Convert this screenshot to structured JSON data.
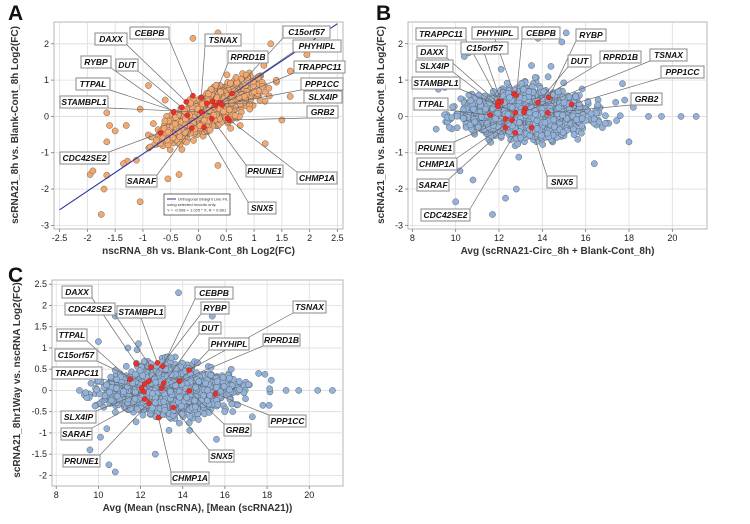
{
  "figure": {
    "panels": [
      "A",
      "B",
      "C"
    ]
  },
  "chart_data": [
    {
      "panel": "A",
      "type": "scatter",
      "xlabel": "nscRNA_8h vs. Blank-Cont_8h Log2(FC)",
      "ylabel": "scRNA21_8h vs. Blank-Cont_8h Log2(FC)",
      "xlim": [
        -2.6,
        2.6
      ],
      "ylim": [
        -3.1,
        2.6
      ],
      "xticks": [
        -2.5,
        -2,
        -1.5,
        -1,
        -0.5,
        0,
        0.5,
        1,
        1.5,
        2,
        2.5
      ],
      "xtick_labels": [
        "-2.5",
        "-2",
        "-1.5",
        "-1",
        "-0.5",
        "0",
        "0.5",
        "1",
        "1.5",
        "2",
        "2.5"
      ],
      "yticks": [
        -3,
        -2,
        -1,
        0,
        1,
        2
      ],
      "ytick_labels": [
        "-3",
        "-2",
        "-1",
        "0",
        "1",
        "2"
      ],
      "grid": true,
      "point_color": "#f4a86e",
      "highlight_color": "#e8312a",
      "fit_line": {
        "intercept": -0.008,
        "slope": 1.025,
        "color": "#2b33a6"
      },
      "legend": {
        "placement": "bottom-center",
        "lines": [
          "Orthogonal Straight Line Fit,",
          "using selected records only.",
          "Y = -0.008 + 1.025 * X, R = 0.891"
        ]
      },
      "cloud": {
        "n": 1500,
        "center": [
          0.15,
          0.1
        ],
        "spread_x": 0.38,
        "spread_y": 0.36,
        "corr": 0.78
      },
      "outliers": [
        [
          -1.95,
          -1.6
        ],
        [
          -1.65,
          -1.62
        ],
        [
          -1.7,
          -2.0
        ],
        [
          -1.75,
          -2.7
        ],
        [
          -1.05,
          -2.35
        ],
        [
          -0.1,
          2.15
        ],
        [
          0.35,
          2.3
        ],
        [
          1.3,
          2.0
        ],
        [
          1.95,
          1.7
        ],
        [
          1.65,
          0.55
        ],
        [
          -1.65,
          0.1
        ],
        [
          -1.6,
          -0.25
        ],
        [
          -1.5,
          -0.4
        ],
        [
          -1.65,
          -0.7
        ],
        [
          -1.3,
          -0.25
        ],
        [
          -0.9,
          0.85
        ],
        [
          0.35,
          -1.35
        ],
        [
          -0.35,
          -1.6
        ],
        [
          1.5,
          -0.1
        ],
        [
          1.2,
          -0.75
        ],
        [
          0.75,
          -0.25
        ],
        [
          -1.9,
          -1.5
        ],
        [
          -1.35,
          -1.3
        ],
        [
          -0.55,
          -1.72
        ],
        [
          1.4,
          1.0
        ],
        [
          1.65,
          1.25
        ],
        [
          -1.05,
          0.2
        ],
        [
          -0.6,
          0.45
        ]
      ],
      "highlights": [
        {
          "gene": "CEBPB",
          "x": -0.1,
          "y": 0.57
        },
        {
          "gene": "TSNAX",
          "x": 0.05,
          "y": 0.52
        },
        {
          "gene": "RPRD1B",
          "x": 0.25,
          "y": 0.42
        },
        {
          "gene": "C15orf57",
          "x": 0.6,
          "y": 0.63
        },
        {
          "gene": "PHYHIPL",
          "x": 0.38,
          "y": 0.38
        },
        {
          "gene": "TRAPPC11",
          "x": 0.3,
          "y": 0.3
        },
        {
          "gene": "PPP1CC",
          "x": 0.42,
          "y": 0.32
        },
        {
          "gene": "SLX4IP",
          "x": 0.15,
          "y": 0.36
        },
        {
          "gene": "GRB2",
          "x": 0.55,
          "y": -0.1
        },
        {
          "gene": "DAXX",
          "x": -0.22,
          "y": 0.4
        },
        {
          "gene": "DUT",
          "x": -0.3,
          "y": 0.25
        },
        {
          "gene": "RYBP",
          "x": -0.45,
          "y": 0.12
        },
        {
          "gene": "TTPAL",
          "x": -0.2,
          "y": 0.03
        },
        {
          "gene": "STAMBPL1",
          "x": 0.05,
          "y": 0.12
        },
        {
          "gene": "CDC42SE2",
          "x": -0.68,
          "y": -0.45
        },
        {
          "gene": "SARAF",
          "x": -0.12,
          "y": -0.32
        },
        {
          "gene": "PRUNE1",
          "x": 0.24,
          "y": -0.06
        },
        {
          "gene": "SNX5",
          "x": 0.1,
          "y": -0.3
        },
        {
          "gene": "CHMP1A",
          "x": 0.52,
          "y": -0.05
        }
      ]
    },
    {
      "panel": "B",
      "type": "scatter",
      "xlabel": "Avg (scRNA21-Circ_8h + Blank-Cont_8h)",
      "ylabel": "scRNA21_8h vs. Blank-Cont_8h Log2(FC)",
      "xlim": [
        7.8,
        21.6
      ],
      "ylim": [
        -3.1,
        2.6
      ],
      "xticks": [
        8,
        10,
        12,
        14,
        16,
        18,
        20
      ],
      "xtick_labels": [
        "8",
        "10",
        "12",
        "14",
        "16",
        "18",
        "20"
      ],
      "yticks": [
        -3,
        -2,
        -1,
        0,
        1,
        2
      ],
      "ytick_labels": [
        "-3",
        "-2",
        "-1",
        "0",
        "1",
        "2"
      ],
      "grid": true,
      "point_color": "#91b2da",
      "highlight_color": "#e8312a",
      "cloud": {
        "n": 1700,
        "center": [
          13.2,
          0.05
        ],
        "spread_x": 1.35,
        "spread_y": 0.35,
        "corr": 0
      },
      "outliers": [
        [
          18.9,
          0
        ],
        [
          19.5,
          0
        ],
        [
          20.4,
          0
        ],
        [
          21.1,
          0
        ],
        [
          15.1,
          2.3
        ],
        [
          13.8,
          2.15
        ],
        [
          14.9,
          2.05
        ],
        [
          11.7,
          -2.7
        ],
        [
          12.3,
          -2.25
        ],
        [
          12.8,
          -2.0
        ],
        [
          10.0,
          -2.35
        ],
        [
          10.4,
          1.65
        ],
        [
          10.6,
          1.75
        ],
        [
          9.2,
          0.75
        ],
        [
          9.5,
          0.8
        ],
        [
          9.1,
          -0.35
        ],
        [
          18.0,
          -0.7
        ],
        [
          17.7,
          0.9
        ],
        [
          16.4,
          -1.3
        ],
        [
          18.2,
          0.25
        ],
        [
          17.8,
          0.45
        ],
        [
          10.2,
          -1.5
        ],
        [
          10.8,
          -1.75
        ],
        [
          9.7,
          -0.3
        ],
        [
          12.1,
          1.3
        ],
        [
          13.5,
          1.4
        ]
      ],
      "highlights": [
        {
          "gene": "TRAPPC11",
          "x": 12.0,
          "y": 0.42
        },
        {
          "gene": "PHYHIPL",
          "x": 12.7,
          "y": 0.62
        },
        {
          "gene": "CEBPB",
          "x": 12.8,
          "y": 0.58
        },
        {
          "gene": "RYBP",
          "x": 14.3,
          "y": 0.52
        },
        {
          "gene": "DUT",
          "x": 13.8,
          "y": 0.38
        },
        {
          "gene": "RPRD1B",
          "x": 13.2,
          "y": 0.22
        },
        {
          "gene": "TSNAX",
          "x": 13.15,
          "y": 0.12
        },
        {
          "gene": "PPP1CC",
          "x": 15.35,
          "y": 0.33
        },
        {
          "gene": "GRB2",
          "x": 14.25,
          "y": 0.1
        },
        {
          "gene": "C15orf57",
          "x": 12.1,
          "y": 0.4
        },
        {
          "gene": "DAXX",
          "x": 11.95,
          "y": 0.38
        },
        {
          "gene": "SLX4IP",
          "x": 11.95,
          "y": 0.28
        },
        {
          "gene": "STAMBPL1",
          "x": 12.75,
          "y": 0.1
        },
        {
          "gene": "TTPAL",
          "x": 11.6,
          "y": 0.04
        },
        {
          "gene": "PRUNE1",
          "x": 12.3,
          "y": -0.07
        },
        {
          "gene": "CHMP1A",
          "x": 12.6,
          "y": -0.1
        },
        {
          "gene": "SARAF",
          "x": 12.3,
          "y": -0.31
        },
        {
          "gene": "CDC42SE2",
          "x": 12.75,
          "y": -0.45
        },
        {
          "gene": "SNX5",
          "x": 13.5,
          "y": -0.31
        }
      ]
    },
    {
      "panel": "C",
      "type": "scatter",
      "xlabel": "Avg (Mean (nscRNA), [Mean (scRNA21))",
      "ylabel": "scRNA21_8hr1Way vs. nscRNA Log2(FC)",
      "xlim": [
        7.8,
        21.6
      ],
      "ylim": [
        -2.25,
        2.6
      ],
      "xticks": [
        8,
        10,
        12,
        14,
        16,
        18,
        20
      ],
      "xtick_labels": [
        "8",
        "10",
        "12",
        "14",
        "16",
        "18",
        "20"
      ],
      "yticks": [
        -2,
        -1.5,
        -1,
        -0.5,
        0,
        0.5,
        1,
        1.5,
        2,
        2.5
      ],
      "ytick_labels": [
        "-2",
        "-1.5",
        "-1",
        "-0.5",
        "0",
        "0.5",
        "1",
        "1.5",
        "2",
        "2.5"
      ],
      "grid": true,
      "point_color": "#91b2da",
      "highlight_color": "#e8312a",
      "cloud": {
        "n": 1700,
        "center": [
          13.3,
          0.0
        ],
        "spread_x": 1.35,
        "spread_y": 0.3,
        "corr": 0
      },
      "outliers": [
        [
          18.9,
          0
        ],
        [
          19.5,
          0
        ],
        [
          20.4,
          0
        ],
        [
          21.1,
          0
        ],
        [
          13.8,
          2.3
        ],
        [
          15.4,
          1.75
        ],
        [
          10.8,
          1.75
        ],
        [
          11.9,
          1.1
        ],
        [
          10.0,
          1.15
        ],
        [
          9.6,
          -1.4
        ],
        [
          10.5,
          -1.75
        ],
        [
          10.8,
          -1.92
        ],
        [
          12.7,
          -1.5
        ],
        [
          9.1,
          0
        ],
        [
          9.4,
          -0.05
        ],
        [
          17.6,
          0.4
        ],
        [
          17.9,
          0.38
        ],
        [
          18.2,
          0.24
        ],
        [
          17.8,
          -0.35
        ],
        [
          18.1,
          -0.35
        ],
        [
          17.3,
          -0.62
        ],
        [
          15.6,
          -1.15
        ],
        [
          10.4,
          -0.9
        ],
        [
          10.1,
          -1.1
        ],
        [
          11.4,
          1.0
        ],
        [
          16.3,
          0.5
        ]
      ],
      "highlights": [
        {
          "gene": "DAXX",
          "x": 11.8,
          "y": 0.63
        },
        {
          "gene": "CDC42SE2",
          "x": 12.5,
          "y": 0.55
        },
        {
          "gene": "STAMBPL1",
          "x": 12.8,
          "y": 0.65
        },
        {
          "gene": "CEBPB",
          "x": 13.05,
          "y": 0.57
        },
        {
          "gene": "RYBP",
          "x": 12.4,
          "y": 0.22
        },
        {
          "gene": "DUT",
          "x": 13.1,
          "y": 0.17
        },
        {
          "gene": "PHYHIPL",
          "x": 13.85,
          "y": 0.22
        },
        {
          "gene": "TSNAX",
          "x": 14.3,
          "y": 0.48
        },
        {
          "gene": "RPRD1B",
          "x": 13.0,
          "y": 0.05
        },
        {
          "gene": "TTPAL",
          "x": 11.5,
          "y": 0.26
        },
        {
          "gene": "C15orf57",
          "x": 12.2,
          "y": 0.15
        },
        {
          "gene": "TRAPPC11",
          "x": 12.05,
          "y": 0.05
        },
        {
          "gene": "SLX4IP",
          "x": 12.15,
          "y": -0.03
        },
        {
          "gene": "SARAF",
          "x": 12.2,
          "y": -0.2
        },
        {
          "gene": "PRUNE1",
          "x": 12.4,
          "y": -0.3
        },
        {
          "gene": "PPP1CC",
          "x": 15.55,
          "y": -0.08
        },
        {
          "gene": "GRB2",
          "x": 14.3,
          "y": -0.01
        },
        {
          "gene": "SNX5",
          "x": 13.55,
          "y": -0.4
        },
        {
          "gene": "CHMP1A",
          "x": 12.85,
          "y": -0.64
        }
      ]
    }
  ]
}
